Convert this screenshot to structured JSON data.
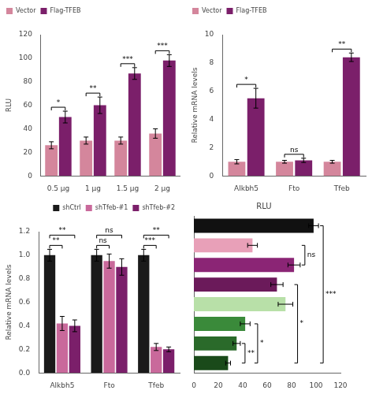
{
  "chart_data": [
    {
      "type": "bar",
      "ylabel": "RLU",
      "categories": [
        "0.5 μg",
        "1 μg",
        "1.5 μg",
        "2 μg"
      ],
      "series": [
        {
          "name": "Vector",
          "color": "#d4869c",
          "values": [
            26,
            30,
            30,
            36
          ],
          "errors": [
            3,
            3,
            3,
            4
          ]
        },
        {
          "name": "Flag-TFEB",
          "color": "#7b1f6a",
          "values": [
            50,
            60,
            87,
            98
          ],
          "errors": [
            5,
            7,
            5,
            5
          ]
        }
      ],
      "ylim": [
        0,
        120
      ],
      "yticks": [
        0,
        20,
        40,
        60,
        80,
        100,
        120
      ],
      "grid": false,
      "legend": "upper left",
      "annotations": [
        {
          "text": "*",
          "category": "0.5 μg",
          "between": [
            "Vector",
            "Flag-TFEB"
          ]
        },
        {
          "text": "**",
          "category": "1 μg",
          "between": [
            "Vector",
            "Flag-TFEB"
          ]
        },
        {
          "text": "***",
          "category": "1.5 μg",
          "between": [
            "Vector",
            "Flag-TFEB"
          ]
        },
        {
          "text": "***",
          "category": "2 μg",
          "between": [
            "Vector",
            "Flag-TFEB"
          ]
        }
      ]
    },
    {
      "type": "bar",
      "ylabel": "Relative mRNA levels",
      "categories": [
        "Alkbh5",
        "Fto",
        "Tfeb"
      ],
      "series": [
        {
          "name": "Vector",
          "color": "#d4869c",
          "values": [
            1.0,
            1.0,
            1.0
          ],
          "errors": [
            0.15,
            0.1,
            0.1
          ]
        },
        {
          "name": "Flag-TFEB",
          "color": "#7b1f6a",
          "values": [
            5.5,
            1.1,
            8.4
          ],
          "errors": [
            0.7,
            0.15,
            0.3
          ]
        }
      ],
      "ylim": [
        0,
        10
      ],
      "yticks": [
        0,
        2,
        4,
        6,
        8,
        10
      ],
      "grid": false,
      "legend": "upper left",
      "annotations": [
        {
          "text": "*",
          "category": "Alkbh5",
          "between": [
            "Vector",
            "Flag-TFEB"
          ]
        },
        {
          "text": "ns",
          "category": "Fto",
          "between": [
            "Vector",
            "Flag-TFEB"
          ]
        },
        {
          "text": "**",
          "category": "Tfeb",
          "between": [
            "Vector",
            "Flag-TFEB"
          ]
        }
      ]
    },
    {
      "type": "bar",
      "ylabel": "Relative mRNA levels",
      "categories": [
        "Alkbh5",
        "Fto",
        "Tfeb"
      ],
      "series": [
        {
          "name": "shCtrl",
          "color": "#1a1a1a",
          "values": [
            1.0,
            1.0,
            1.0
          ],
          "errors": [
            0.05,
            0.05,
            0.05
          ]
        },
        {
          "name": "shTfeb-#1",
          "color": "#c9699b",
          "values": [
            0.42,
            0.95,
            0.22
          ],
          "errors": [
            0.06,
            0.06,
            0.03
          ]
        },
        {
          "name": "shTfeb-#2",
          "color": "#7b1f6a",
          "values": [
            0.4,
            0.9,
            0.2
          ],
          "errors": [
            0.05,
            0.07,
            0.02
          ]
        }
      ],
      "ylim": [
        0,
        1.2
      ],
      "yticks": [
        {
          "value": 0,
          "label": "0.0"
        },
        0.2,
        0.4,
        0.6,
        0.8,
        {
          "value": 1,
          "label": "1.0"
        },
        1.2
      ],
      "grid": false,
      "legend": "upper right",
      "annotations": [
        {
          "text": "**",
          "category": "Alkbh5",
          "between": [
            "shCtrl",
            "shTfeb-#1"
          ]
        },
        {
          "text": "**",
          "category": "Alkbh5",
          "between": [
            "shCtrl",
            "shTfeb-#2"
          ]
        },
        {
          "text": "ns",
          "category": "Fto",
          "between": [
            "shCtrl",
            "shTfeb-#1"
          ]
        },
        {
          "text": "ns",
          "category": "Fto",
          "between": [
            "shCtrl",
            "shTfeb-#2"
          ]
        },
        {
          "text": "***",
          "category": "Tfeb",
          "between": [
            "shCtrl",
            "shTfeb-#1"
          ]
        },
        {
          "text": "**",
          "category": "Tfeb",
          "between": [
            "shCtrl",
            "shTfeb-#2"
          ]
        }
      ]
    },
    {
      "type": "bar",
      "orientation": "horizontal",
      "title": "RLU",
      "categories": [
        null,
        null,
        null,
        null,
        null,
        null,
        null,
        null
      ],
      "values": [
        98,
        48,
        82,
        68,
        75,
        42,
        35,
        28
      ],
      "errors": [
        4,
        4,
        5,
        5,
        6,
        4,
        3,
        2
      ],
      "colors": [
        "#111111",
        "#e8a0b8",
        "#8b2575",
        "#6b1a5a",
        "#b8e0a8",
        "#3a8a3a",
        "#2a6a2a",
        "#1a4a1a"
      ],
      "xlim": [
        0,
        120
      ],
      "xticks": [
        0,
        20,
        40,
        60,
        80,
        100,
        120
      ],
      "grid": false,
      "tick_labels": "x",
      "annotations": [
        {
          "text": "**",
          "between": [
            7,
            6
          ]
        },
        {
          "text": "*",
          "between": [
            7,
            5
          ]
        },
        {
          "text": "*",
          "between": [
            7,
            3
          ]
        },
        {
          "text": "***",
          "between": [
            7,
            0
          ]
        },
        {
          "text": "ns",
          "between": [
            2,
            1
          ]
        }
      ]
    }
  ]
}
